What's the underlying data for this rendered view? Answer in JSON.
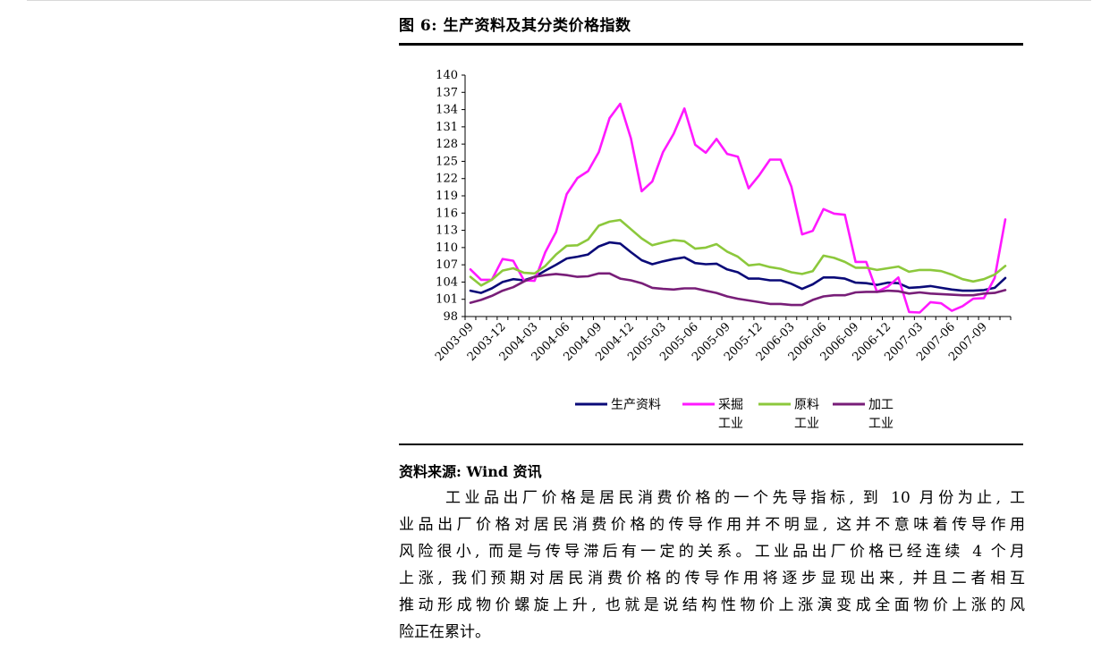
{
  "figure": {
    "title": "图 6: 生产资料及其分类价格指数",
    "source": "资料来源: Wind 资讯"
  },
  "paragraph": {
    "lines": [
      "工业品出厂价格是居民消费价格的一个先导指标, 到 10 月份为止, 工",
      "业品出厂价格对居民消费价格的传导作用并不明显, 这并不意味着传导作用",
      "风险很小, 而是与传导滞后有一定的关系。工业品出厂价格已经连续 4 个月",
      "上涨, 我们预期对居民消费价格的传导作用将逐步显现出来, 并且二者相互",
      "推动形成物价螺旋上升, 也就是说结构性物价上涨演变成全面物价上涨的风",
      "险正在累计。"
    ]
  },
  "chart_data": {
    "type": "line",
    "title": "",
    "xlabel": "",
    "ylabel": "",
    "ylim": [
      98,
      140
    ],
    "yticks": [
      98,
      101,
      104,
      107,
      110,
      113,
      116,
      119,
      122,
      125,
      128,
      131,
      134,
      137,
      140
    ],
    "x_tick_labels": [
      {
        "index": 0,
        "label": "2003-09"
      },
      {
        "index": 3,
        "label": "2003-12"
      },
      {
        "index": 6,
        "label": "2004-03"
      },
      {
        "index": 9,
        "label": "2004-06"
      },
      {
        "index": 12,
        "label": "2004-09"
      },
      {
        "index": 15,
        "label": "2004-12"
      },
      {
        "index": 18,
        "label": "2005-03"
      },
      {
        "index": 21,
        "label": "2005-06"
      },
      {
        "index": 24,
        "label": "2005-09"
      },
      {
        "index": 27,
        "label": "2005-12"
      },
      {
        "index": 30,
        "label": "2006-03"
      },
      {
        "index": 33,
        "label": "2006-06"
      },
      {
        "index": 36,
        "label": "2006-09"
      },
      {
        "index": 39,
        "label": "2006-12"
      },
      {
        "index": 42,
        "label": "2007-03"
      },
      {
        "index": 45,
        "label": "2007-06"
      },
      {
        "index": 48,
        "label": "2007-09"
      }
    ],
    "x": [
      "2003-09",
      "2003-10",
      "2003-11",
      "2003-12",
      "2004-01",
      "2004-02",
      "2004-03",
      "2004-04",
      "2004-05",
      "2004-06",
      "2004-07",
      "2004-08",
      "2004-09",
      "2004-10",
      "2004-11",
      "2004-12",
      "2005-01",
      "2005-02",
      "2005-03",
      "2005-04",
      "2005-05",
      "2005-06",
      "2005-07",
      "2005-08",
      "2005-09",
      "2005-10",
      "2005-11",
      "2005-12",
      "2006-01",
      "2006-02",
      "2006-03",
      "2006-04",
      "2006-05",
      "2006-06",
      "2006-07",
      "2006-08",
      "2006-09",
      "2006-10",
      "2006-11",
      "2006-12",
      "2007-01",
      "2007-02",
      "2007-03",
      "2007-04",
      "2007-05",
      "2007-06",
      "2007-07",
      "2007-08",
      "2007-09",
      "2007-10",
      "2007-11"
    ],
    "series": [
      {
        "name": "生产资料",
        "color": "#0a0a78",
        "values": [
          102.5,
          102.1,
          102.9,
          104.0,
          104.5,
          104.3,
          104.9,
          106.0,
          107.0,
          108.1,
          108.4,
          108.8,
          110.2,
          110.9,
          110.7,
          109.2,
          107.8,
          107.1,
          107.6,
          108.0,
          108.3,
          107.3,
          107.1,
          107.2,
          106.2,
          105.7,
          104.6,
          104.6,
          104.3,
          104.3,
          103.7,
          102.8,
          103.6,
          104.8,
          104.8,
          104.6,
          103.9,
          103.8,
          103.5,
          103.9,
          103.8,
          103.0,
          103.1,
          103.3,
          103.0,
          102.7,
          102.5,
          102.5,
          102.6,
          103.0,
          104.7
        ]
      },
      {
        "name": "采掘工业",
        "color": "#ff19ff",
        "values": [
          106.2,
          104.4,
          104.4,
          108.0,
          107.7,
          104.3,
          104.2,
          109.2,
          112.7,
          119.3,
          122.1,
          123.3,
          126.6,
          132.5,
          135.0,
          129.0,
          119.8,
          121.5,
          126.6,
          129.8,
          134.2,
          127.9,
          126.5,
          128.9,
          126.3,
          125.8,
          120.3,
          122.6,
          125.3,
          125.3,
          120.6,
          112.3,
          112.9,
          116.7,
          115.9,
          115.7,
          107.5,
          107.5,
          102.3,
          103.2,
          104.8,
          98.8,
          98.7,
          100.5,
          100.3,
          99.0,
          99.8,
          101.1,
          101.2,
          104.7,
          114.9
        ]
      },
      {
        "name": "原料工业",
        "color": "#8cc83c",
        "values": [
          104.9,
          103.4,
          104.4,
          106.0,
          106.4,
          105.6,
          105.5,
          106.8,
          108.8,
          110.3,
          110.4,
          111.4,
          113.8,
          114.5,
          114.8,
          113.2,
          111.6,
          110.4,
          110.9,
          111.3,
          111.1,
          109.8,
          110.0,
          110.6,
          109.3,
          108.4,
          106.9,
          107.1,
          106.6,
          106.3,
          105.7,
          105.4,
          105.9,
          108.6,
          108.2,
          107.5,
          106.5,
          106.5,
          106.1,
          106.4,
          106.7,
          105.8,
          106.1,
          106.1,
          105.9,
          105.3,
          104.5,
          104.1,
          104.5,
          105.3,
          106.8
        ]
      },
      {
        "name": "加工工业",
        "color": "#781e78",
        "values": [
          100.4,
          100.9,
          101.6,
          102.5,
          103.1,
          104.1,
          104.9,
          105.2,
          105.4,
          105.2,
          104.9,
          105.0,
          105.5,
          105.5,
          104.6,
          104.3,
          103.8,
          103.0,
          102.8,
          102.7,
          102.9,
          102.9,
          102.5,
          102.1,
          101.5,
          101.1,
          100.8,
          100.5,
          100.2,
          100.2,
          100.0,
          100.0,
          100.9,
          101.5,
          101.7,
          101.7,
          102.2,
          102.3,
          102.3,
          102.5,
          102.4,
          102.0,
          102.2,
          102.0,
          101.9,
          101.8,
          101.7,
          101.7,
          102.0,
          102.1,
          102.6
        ]
      }
    ],
    "legend": {
      "position": "bottom",
      "items": [
        {
          "name": "生产资料",
          "line1": "生产资料",
          "line2": ""
        },
        {
          "name": "采掘工业",
          "line1": "采掘",
          "line2": "工业"
        },
        {
          "name": "原料工业",
          "line1": "原料",
          "line2": "工业"
        },
        {
          "name": "加工工业",
          "line1": "加工",
          "line2": "工业"
        }
      ]
    },
    "grid": false
  }
}
